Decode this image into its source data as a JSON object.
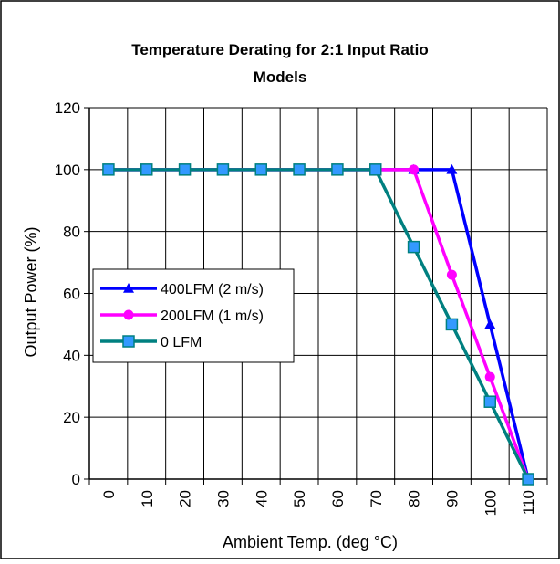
{
  "chart_data": {
    "type": "line",
    "title_lines": [
      "Temperature Derating for 2:1 Input Ratio",
      "Models"
    ],
    "xlabel": "Ambient Temp. (deg °C)",
    "ylabel": "Output Power (%)",
    "x_categories": [
      "0",
      "10",
      "20",
      "30",
      "40",
      "50",
      "60",
      "70",
      "80",
      "90",
      "100",
      "110"
    ],
    "ylim": [
      0,
      120
    ],
    "y_ticks": [
      0,
      20,
      40,
      60,
      80,
      100,
      120
    ],
    "grid": true,
    "legend_position": "left-middle",
    "series": [
      {
        "name": "400LFM (2 m/s)",
        "color": "#0000ff",
        "marker": "triangle",
        "points": [
          [
            0,
            100
          ],
          [
            10,
            100
          ],
          [
            20,
            100
          ],
          [
            30,
            100
          ],
          [
            40,
            100
          ],
          [
            50,
            100
          ],
          [
            60,
            100
          ],
          [
            70,
            100
          ],
          [
            80,
            100
          ],
          [
            90,
            100
          ],
          [
            100,
            50
          ],
          [
            110,
            0
          ]
        ]
      },
      {
        "name": "200LFM (1 m/s)",
        "color": "#ff00ff",
        "marker": "circle",
        "points": [
          [
            0,
            100
          ],
          [
            10,
            100
          ],
          [
            20,
            100
          ],
          [
            30,
            100
          ],
          [
            40,
            100
          ],
          [
            50,
            100
          ],
          [
            60,
            100
          ],
          [
            70,
            100
          ],
          [
            80,
            100
          ],
          [
            90,
            66
          ],
          [
            100,
            33
          ],
          [
            110,
            0
          ]
        ]
      },
      {
        "name": "0 LFM",
        "color": "#008080",
        "marker": "square",
        "marker_fill": "#3399ff",
        "points": [
          [
            0,
            100
          ],
          [
            10,
            100
          ],
          [
            20,
            100
          ],
          [
            30,
            100
          ],
          [
            40,
            100
          ],
          [
            50,
            100
          ],
          [
            60,
            100
          ],
          [
            70,
            100
          ],
          [
            80,
            75
          ],
          [
            90,
            50
          ],
          [
            100,
            25
          ],
          [
            110,
            0
          ]
        ]
      }
    ]
  }
}
